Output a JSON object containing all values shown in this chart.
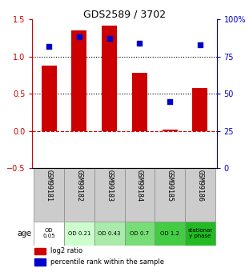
{
  "title": "GDS2589 / 3702",
  "categories": [
    "GSM99181",
    "GSM99182",
    "GSM99183",
    "GSM99184",
    "GSM99185",
    "GSM99186"
  ],
  "bar_values": [
    0.88,
    1.35,
    1.42,
    0.78,
    0.02,
    0.58
  ],
  "percentile_values": [
    82,
    88,
    87,
    84,
    45,
    83
  ],
  "bar_color": "#cc0000",
  "dot_color": "#0000cc",
  "ylim_left": [
    -0.5,
    1.5
  ],
  "ylim_right": [
    0,
    100
  ],
  "yticks_left": [
    -0.5,
    0,
    0.5,
    1.0,
    1.5
  ],
  "yticks_right": [
    0,
    25,
    50,
    75,
    100
  ],
  "ytick_labels_right": [
    "0",
    "25",
    "50",
    "75",
    "100%"
  ],
  "hlines_dotted": [
    0.5,
    1.0
  ],
  "hline_dashed": 0.0,
  "age_labels": [
    "OD\n0.05",
    "OD 0.21",
    "OD 0.43",
    "OD 0.7",
    "OD 1.2",
    "stationar\ny phase"
  ],
  "age_colors": [
    "#ffffff",
    "#ccffcc",
    "#aaeaaa",
    "#77dd77",
    "#44cc44",
    "#22bb22"
  ],
  "age_header": "age",
  "legend_bar_label": "log2 ratio",
  "legend_dot_label": "percentile rank within the sample",
  "bar_width": 0.5,
  "left_axis_color": "#cc0000",
  "right_axis_color": "#0000cc",
  "gsm_bg_color": "#cccccc",
  "title_fontsize": 9
}
